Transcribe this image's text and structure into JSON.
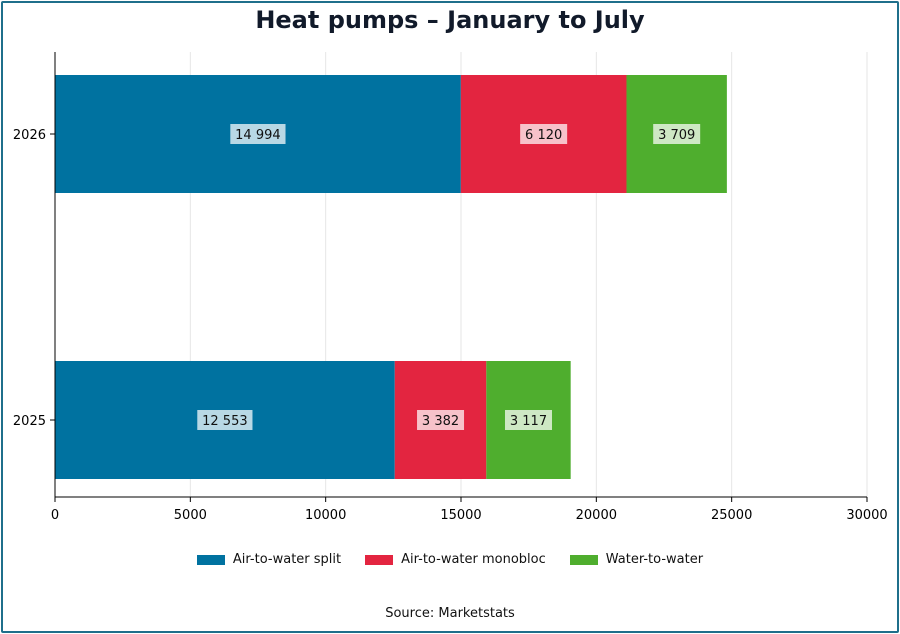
{
  "chart_data": {
    "type": "bar",
    "orientation": "horizontal",
    "stacked": true,
    "title": "Heat pumps – January to July",
    "categories": [
      "2026",
      "2025"
    ],
    "series": [
      {
        "name": "Air-to-water split",
        "color": "#0072a0",
        "values": [
          14994,
          12553
        ],
        "labels": [
          "14 994",
          "12 553"
        ]
      },
      {
        "name": "Air-to-water monobloc",
        "color": "#e32540",
        "values": [
          6120,
          3382
        ],
        "labels": [
          "6 120",
          "3 382"
        ]
      },
      {
        "name": "Water-to-water",
        "color": "#4fae2e",
        "values": [
          3709,
          3117
        ],
        "labels": [
          "3 709",
          "3 117"
        ]
      }
    ],
    "xlim": [
      0,
      30000
    ],
    "xticks": [
      "0",
      "5000",
      "10000",
      "15000",
      "20000",
      "25000",
      "30000"
    ],
    "xlabel": "",
    "ylabel": "",
    "grid": "vertical",
    "legend_position": "bottom",
    "source": "Source: Marketstats"
  }
}
